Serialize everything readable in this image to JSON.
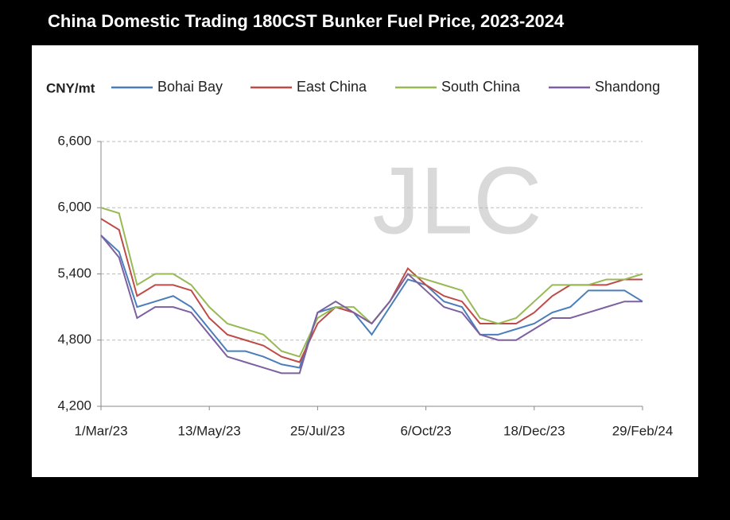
{
  "chart_data": {
    "type": "line",
    "title": "China Domestic Trading 180CST Bunker Fuel Price, 2023-2024",
    "y_label": "CNY/mt",
    "watermark": "JLC",
    "categories": [
      "1/Mar/23",
      null,
      null,
      null,
      null,
      null,
      "13/May/23",
      null,
      null,
      null,
      null,
      null,
      "25/Jul/23",
      null,
      null,
      null,
      null,
      null,
      "6/Oct/23",
      null,
      null,
      null,
      null,
      null,
      "18/Dec/23",
      null,
      null,
      null,
      null,
      null,
      "29/Feb/24"
    ],
    "series": [
      {
        "name": "Bohai Bay",
        "color": "#4a7ebb",
        "values": [
          5750,
          5600,
          5100,
          5150,
          5200,
          5100,
          4900,
          4700,
          4700,
          4650,
          4580,
          4550,
          5050,
          5100,
          5050,
          4850,
          5100,
          5350,
          5300,
          5150,
          5100,
          4850,
          4850,
          4900,
          4950,
          5050,
          5100,
          5250,
          5250,
          5250,
          5150
        ]
      },
      {
        "name": "East China",
        "color": "#be4b48",
        "values": [
          5900,
          5800,
          5200,
          5300,
          5300,
          5250,
          5000,
          4850,
          4800,
          4750,
          4650,
          4600,
          4950,
          5100,
          5050,
          4950,
          5150,
          5450,
          5300,
          5200,
          5150,
          4950,
          4950,
          4950,
          5050,
          5200,
          5300,
          5300,
          5300,
          5350,
          5350
        ]
      },
      {
        "name": "South China",
        "color": "#98b954",
        "values": [
          6000,
          5950,
          5300,
          5400,
          5400,
          5300,
          5100,
          4950,
          4900,
          4850,
          4700,
          4650,
          5000,
          5100,
          5100,
          4950,
          5150,
          5400,
          5350,
          5300,
          5250,
          5000,
          4950,
          5000,
          5150,
          5300,
          5300,
          5300,
          5350,
          5350,
          5400
        ]
      },
      {
        "name": "Shandong",
        "color": "#7d60a0",
        "values": [
          5750,
          5550,
          5000,
          5100,
          5100,
          5050,
          4850,
          4650,
          4600,
          4550,
          4500,
          4500,
          5050,
          5150,
          5050,
          4950,
          5150,
          5400,
          5250,
          5100,
          5050,
          4850,
          4800,
          4800,
          4900,
          5000,
          5000,
          5050,
          5100,
          5150,
          5150
        ]
      }
    ],
    "ylim": [
      4200,
      6600
    ],
    "yticks": [
      {
        "value": 4200,
        "label": "4,200"
      },
      {
        "value": 4800,
        "label": "4,800"
      },
      {
        "value": 5400,
        "label": "5,400"
      },
      {
        "value": 6000,
        "label": "6,000"
      },
      {
        "value": 6600,
        "label": "6,600"
      }
    ],
    "grid": true
  }
}
